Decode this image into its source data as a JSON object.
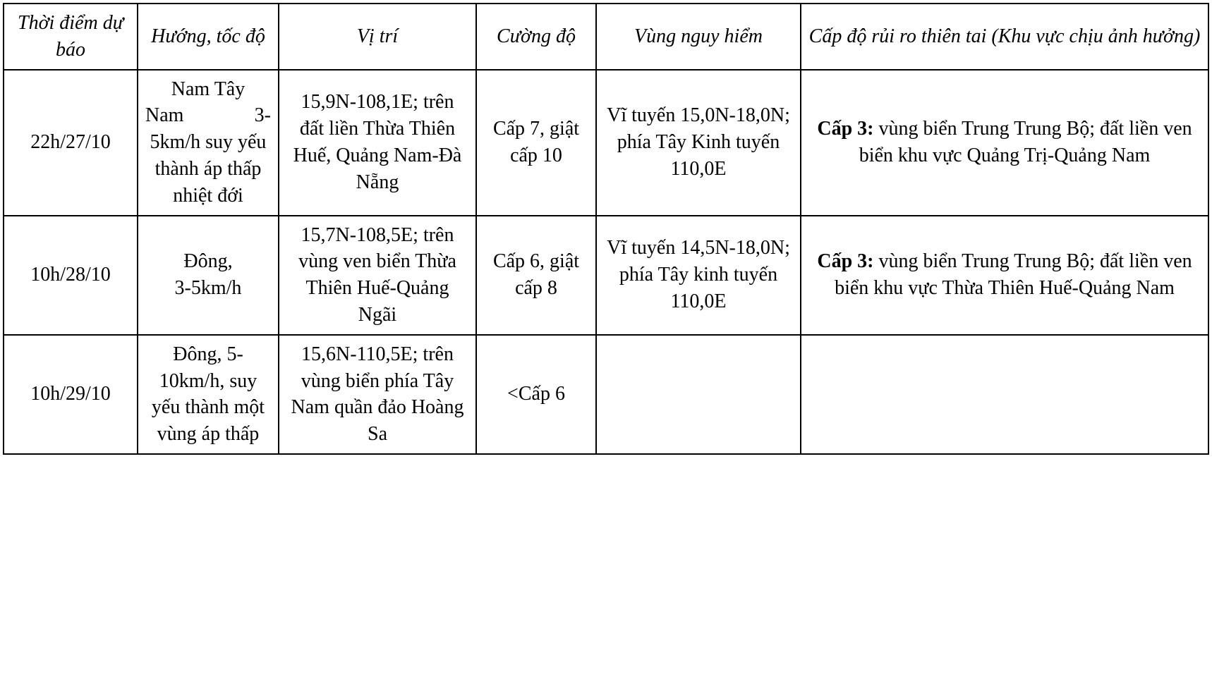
{
  "table": {
    "headers": {
      "time": "Thời điểm dự báo",
      "direction": "Hướng, tốc độ",
      "position": "Vị trí",
      "intensity": "Cường độ",
      "danger_zone": "Vùng nguy hiểm",
      "risk_level": "Cấp độ rủi ro thiên tai (Khu vực chịu ảnh hưởng)"
    },
    "rows": [
      {
        "time": "22h/27/10",
        "direction_line1": "Nam Tây",
        "direction_line2": "Nam 3-",
        "direction_rest": "5km/h suy yếu thành áp thấp nhiệt đới",
        "position": "15,9N-108,1E; trên đất liền Thừa Thiên Huế, Quảng Nam-Đà Nẵng",
        "intensity": "Cấp 7, giật cấp 10",
        "danger_zone": "Vĩ tuyến 15,0N-18,0N; phía Tây Kinh tuyến 110,0E",
        "risk_label": "Cấp 3:",
        "risk_text": " vùng biển Trung Trung Bộ; đất liền ven biển khu vực Quảng Trị-Quảng Nam"
      },
      {
        "time": "10h/28/10",
        "direction_plain": "Đông,\n3-5km/h",
        "position": "15,7N-108,5E; trên vùng ven biển Thừa Thiên Huế-Quảng Ngãi",
        "intensity": "Cấp 6, giật cấp 8",
        "danger_zone": "Vĩ tuyến 14,5N-18,0N; phía Tây kinh tuyến 110,0E",
        "risk_label": "Cấp 3:",
        "risk_text": " vùng biển Trung Trung Bộ; đất liền ven biển khu vực Thừa Thiên Huế-Quảng Nam"
      },
      {
        "time": "10h/29/10",
        "direction_plain": "Đông, 5-10km/h, suy yếu thành một vùng áp thấp",
        "position": "15,6N-110,5E; trên vùng biển phía Tây Nam quần đảo Hoàng Sa",
        "intensity": "<Cấp 6",
        "danger_zone": "",
        "risk_label": "",
        "risk_text": ""
      }
    ],
    "style": {
      "font_family": "Times New Roman",
      "font_size_pt": 21,
      "border_color": "#000000",
      "background_color": "#ffffff",
      "text_color": "#000000",
      "header_font_style": "italic",
      "risk_label_font_weight": "bold"
    }
  }
}
